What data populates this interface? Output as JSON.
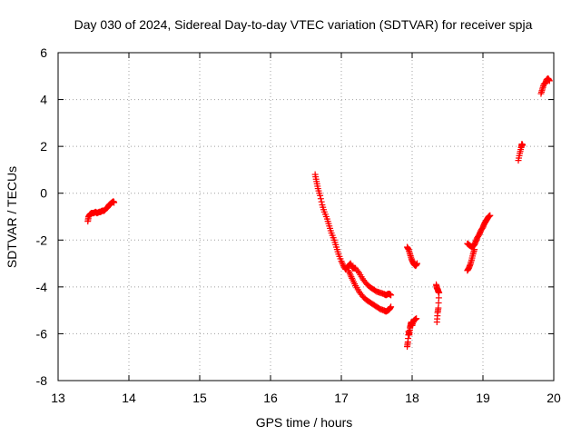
{
  "chart_data": {
    "type": "scatter",
    "title": "Day 030 of 2024, Sidereal Day-to-day VTEC variation (SDTVAR) for receiver spja",
    "xlabel": "GPS time / hours",
    "ylabel": "SDTVAR / TECUs",
    "xlim": [
      13,
      20
    ],
    "ylim": [
      -8,
      6
    ],
    "xticks": [
      "13",
      "14",
      "15",
      "16",
      "17",
      "18",
      "19",
      "20"
    ],
    "yticks": [
      "-8",
      "-6",
      "-4",
      "-2",
      "0",
      "2",
      "4",
      "6"
    ],
    "grid": true,
    "marker": "plus",
    "color": "#ff0000",
    "series": [
      {
        "name": "SDTVAR",
        "segments": [
          {
            "x": [
              13.42,
              13.43,
              13.45,
              13.47,
              13.5,
              13.53,
              13.55,
              13.58,
              13.6,
              13.62,
              13.65,
              13.68,
              13.7,
              13.72,
              13.74,
              13.76,
              13.78,
              13.79
            ],
            "y": [
              -1.2,
              -1.0,
              -0.9,
              -0.85,
              -0.85,
              -0.8,
              -0.85,
              -0.8,
              -0.8,
              -0.75,
              -0.75,
              -0.65,
              -0.6,
              -0.5,
              -0.45,
              -0.4,
              -0.35,
              -0.4
            ]
          },
          {
            "x": [
              16.63,
              16.65,
              16.67,
              16.7,
              16.73,
              16.76,
              16.8,
              16.83,
              16.86,
              16.9,
              16.93,
              16.96,
              17.0,
              17.03,
              17.06,
              17.1,
              17.13,
              17.16,
              17.2,
              17.25,
              17.3,
              17.35,
              17.4,
              17.45,
              17.5,
              17.55,
              17.6,
              17.63,
              17.66,
              17.68,
              17.7
            ],
            "y": [
              0.8,
              0.5,
              0.2,
              -0.1,
              -0.5,
              -0.8,
              -1.1,
              -1.4,
              -1.7,
              -2.0,
              -2.3,
              -2.6,
              -2.9,
              -3.1,
              -3.25,
              -3.1,
              -3.0,
              -3.2,
              -3.2,
              -3.4,
              -3.65,
              -3.85,
              -4.0,
              -4.1,
              -4.2,
              -4.25,
              -4.3,
              -4.35,
              -4.3,
              -4.3,
              -4.35
            ]
          },
          {
            "x": [
              17.1,
              17.13,
              17.16,
              17.2,
              17.25,
              17.3,
              17.35,
              17.4,
              17.45,
              17.5,
              17.55,
              17.6,
              17.63,
              17.66,
              17.68,
              17.7
            ],
            "y": [
              -3.3,
              -3.5,
              -3.7,
              -3.95,
              -4.2,
              -4.4,
              -4.55,
              -4.65,
              -4.75,
              -4.85,
              -4.95,
              -5.0,
              -5.05,
              -5.0,
              -4.95,
              -4.85
            ]
          },
          {
            "x": [
              17.93,
              17.94,
              17.95,
              17.96,
              17.97,
              17.98,
              17.99,
              18.0,
              18.02,
              18.04,
              18.06
            ],
            "y": [
              -6.55,
              -6.35,
              -5.9,
              -6.05,
              -5.75,
              -5.6,
              -5.5,
              -5.65,
              -5.45,
              -5.4,
              -5.35
            ]
          },
          {
            "x": [
              17.93,
              17.95,
              17.97,
              17.99,
              18.01,
              18.03,
              18.05,
              18.07
            ],
            "y": [
              -2.3,
              -2.4,
              -2.6,
              -2.8,
              -2.95,
              -3.05,
              -3.1,
              -3.0
            ]
          },
          {
            "x": [
              18.34,
              18.35,
              18.36,
              18.37,
              18.38,
              18.37,
              18.36,
              18.35
            ],
            "y": [
              -3.9,
              -4.05,
              -4.1,
              -4.2,
              -4.25,
              -4.9,
              -5.1,
              -5.5
            ]
          },
          {
            "x": [
              18.78,
              18.8,
              18.82,
              18.84,
              18.86,
              18.88
            ],
            "y": [
              -3.3,
              -3.2,
              -3.05,
              -2.85,
              -2.6,
              -2.4
            ]
          },
          {
            "x": [
              18.78,
              18.8,
              18.82,
              18.85,
              18.88,
              18.9,
              18.92,
              18.95,
              18.97,
              19.0,
              19.02,
              19.04,
              19.06,
              19.08,
              19.1
            ],
            "y": [
              -2.15,
              -2.2,
              -2.25,
              -2.3,
              -2.2,
              -2.05,
              -1.9,
              -1.75,
              -1.6,
              -1.45,
              -1.3,
              -1.2,
              -1.1,
              -1.0,
              -0.95
            ]
          },
          {
            "x": [
              19.5,
              19.52,
              19.54,
              19.55,
              19.56
            ],
            "y": [
              1.4,
              1.7,
              1.95,
              2.1,
              2.05
            ]
          },
          {
            "x": [
              19.82,
              19.84,
              19.86,
              19.88,
              19.9,
              19.92,
              19.94
            ],
            "y": [
              4.25,
              4.45,
              4.65,
              4.7,
              4.85,
              4.9,
              4.8
            ]
          }
        ]
      }
    ]
  }
}
